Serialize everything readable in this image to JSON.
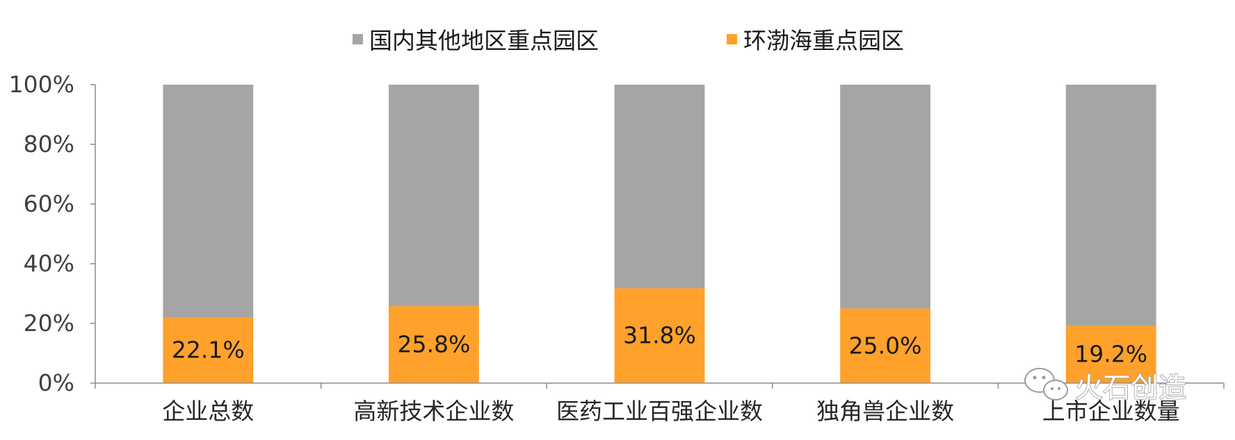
{
  "chart_data": {
    "type": "bar",
    "stacked": true,
    "categories": [
      "企业总数",
      "高新技术企业数",
      "医药工业百强企业数",
      "独角兽企业数",
      "上市企业数量"
    ],
    "series": [
      {
        "name": "国内其他地区重点园区",
        "color": "#a5a5a5",
        "values": [
          77.9,
          74.2,
          68.2,
          75.0,
          80.8
        ]
      },
      {
        "name": "环渤海重点园区",
        "color": "#ffa12b",
        "values": [
          22.1,
          25.8,
          31.8,
          25.0,
          19.2
        ],
        "labels": [
          "22.1%",
          "25.8%",
          "31.8%",
          "25.0%",
          "19.2%"
        ]
      }
    ],
    "yticks": [
      "0%",
      "20%",
      "40%",
      "60%",
      "80%",
      "100%"
    ],
    "ylim": [
      0,
      100
    ],
    "legend_position": "top-center",
    "grid": false
  },
  "watermark": {
    "text": "火石创造",
    "icon": "wechat-icon"
  }
}
